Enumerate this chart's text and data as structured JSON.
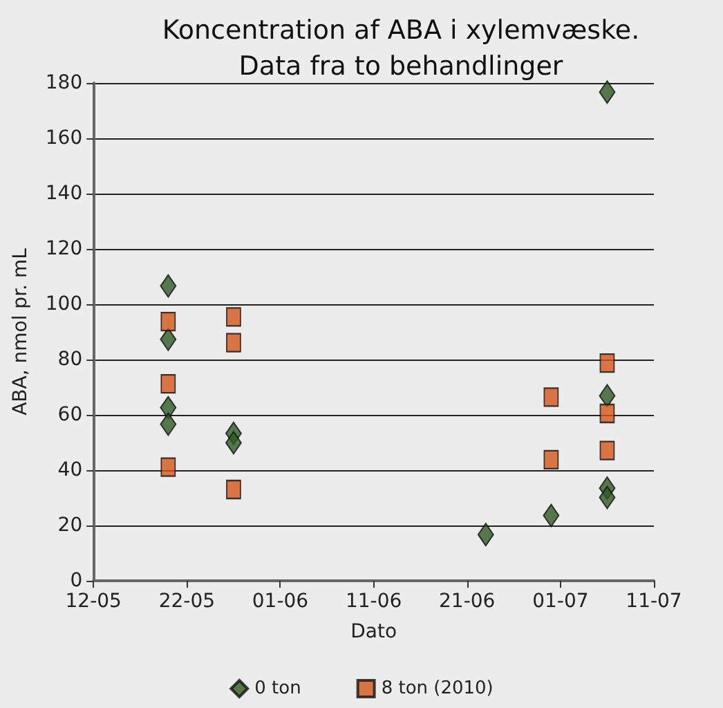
{
  "chart_data": {
    "type": "scatter",
    "title": "Koncentration af ABA i xylemvæske.\nData fra to behandlinger",
    "xlabel": "Dato",
    "ylabel": "ABA, nmol pr. mL",
    "series": [
      {
        "name": "0 ton",
        "color": "#2e5a24",
        "marker": "diamond",
        "x": [
          "--05-20",
          "--05-20",
          "--05-20",
          "--05-20",
          "--05-27",
          "--05-27",
          "--06-23",
          "--06-30",
          "--07-06",
          "--07-06",
          "--07-06",
          "--07-06"
        ],
        "values": [
          106.6,
          87.3,
          62.6,
          56.6,
          53.3,
          49.9,
          16.7,
          23.6,
          176.7,
          66.9,
          33.5,
          30.1
        ]
      },
      {
        "name": "8 ton (2010)",
        "color": "#d4581c",
        "marker": "square",
        "x": [
          "--05-20",
          "--05-20",
          "--05-20",
          "--05-27",
          "--05-27",
          "--05-27",
          "--06-30",
          "--06-30",
          "--07-06",
          "--07-06",
          "--07-06"
        ],
        "values": [
          93.7,
          71.2,
          41.1,
          95.4,
          86.1,
          33,
          66.4,
          43.8,
          78.7,
          60.5,
          47.1
        ]
      }
    ],
    "xlim": [
      "--05-12",
      "--07-11"
    ],
    "xticks": [
      {
        "value": "--05-12",
        "label": "12-05"
      },
      {
        "value": "--05-22",
        "label": "22-05"
      },
      {
        "value": "--06-01",
        "label": "01-06"
      },
      {
        "value": "--06-11",
        "label": "11-06"
      },
      {
        "value": "--06-21",
        "label": "21-06"
      },
      {
        "value": "--07-01",
        "label": "01-07"
      },
      {
        "value": "--07-11",
        "label": "11-07"
      }
    ],
    "ylim": [
      0,
      180
    ],
    "yticks": [
      0,
      20,
      40,
      60,
      80,
      100,
      120,
      140,
      160,
      180
    ],
    "grid": "y",
    "legend": "bottom"
  }
}
